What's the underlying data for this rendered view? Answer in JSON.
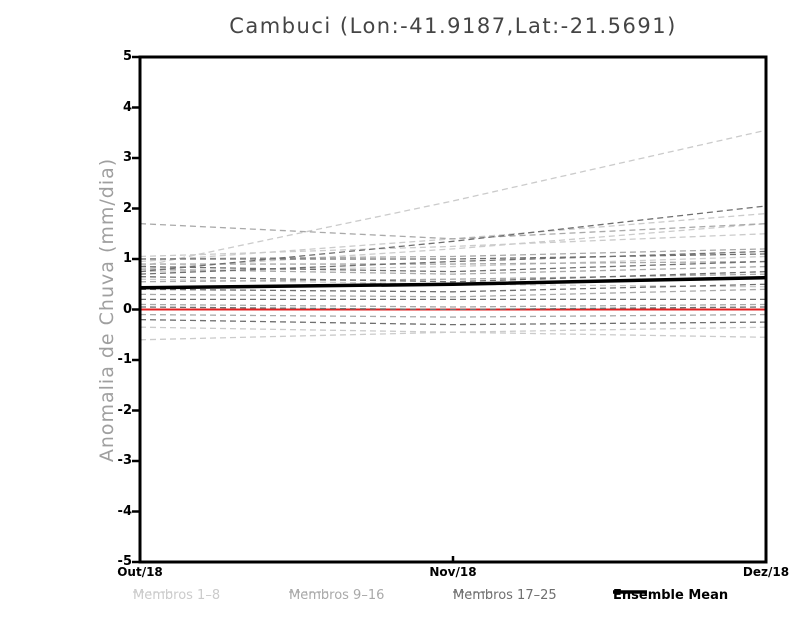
{
  "chart": {
    "title": "Cambuci (Lon:-41.9187,Lat:-21.5691)",
    "ylabel": "Anomalia de Chuva (mm/dia)",
    "x_tick_labels": [
      "Out/18",
      "Nov/18",
      "Dez/18"
    ],
    "y_tick_labels": [
      "5",
      "4",
      "3",
      "2",
      "1",
      "0",
      "-1",
      "-2",
      "-3",
      "-4",
      "-5"
    ]
  },
  "legend": {
    "items": [
      {
        "label": "Membros 1–8",
        "color": "#cbcbcb",
        "line": "dashed"
      },
      {
        "label": "Membros 9–16",
        "color": "#a9a9a9",
        "line": "dashed"
      },
      {
        "label": "Membros 17–25",
        "color": "#6f6f6f",
        "line": "dashed"
      },
      {
        "label": "Ensemble Mean",
        "color": "#000000",
        "line": "solid"
      }
    ]
  },
  "colors": {
    "frame": "#000000",
    "members_1_8": "#cbcbcb",
    "members_9_16": "#a9a9a9",
    "members_17_25": "#6f6f6f",
    "ensemble_mean": "#000000",
    "zero_line": "#e02021",
    "title_text": "#454545",
    "ylabel_text": "#9f9f9f"
  },
  "chart_data": {
    "type": "line",
    "title": "Cambuci (Lon:-41.9187,Lat:-21.5691)",
    "ylabel": "Anomalia de Chuva (mm/dia)",
    "x": [
      "Out/18",
      "Nov/18",
      "Dez/18"
    ],
    "ylim": [
      -5,
      5
    ],
    "y_tick_step": 1,
    "grid": false,
    "legend_position": "bottom",
    "groups": [
      {
        "name": "Membros 1-8",
        "color": "#cbcbcb",
        "style": "dashed",
        "members": [
          [
            0.85,
            2.15,
            3.55
          ],
          [
            0.95,
            1.4,
            1.9
          ],
          [
            0.8,
            1.2,
            1.7
          ],
          [
            1.05,
            1.25,
            1.5
          ],
          [
            0.75,
            0.85,
            1.05
          ],
          [
            0.6,
            0.5,
            0.45
          ],
          [
            -0.35,
            -0.45,
            -0.55
          ],
          [
            -0.6,
            -0.45,
            -0.35
          ]
        ]
      },
      {
        "name": "Membros 9-16",
        "color": "#a9a9a9",
        "style": "dashed",
        "members": [
          [
            1.7,
            1.4,
            1.7
          ],
          [
            1.0,
            1.05,
            1.2
          ],
          [
            0.9,
            0.9,
            0.95
          ],
          [
            0.8,
            0.7,
            0.85
          ],
          [
            0.55,
            0.6,
            0.7
          ],
          [
            0.3,
            0.25,
            0.4
          ],
          [
            0.1,
            0.05,
            0.1
          ],
          [
            -0.1,
            -0.15,
            -0.1
          ]
        ]
      },
      {
        "name": "Membros 17-25",
        "color": "#6f6f6f",
        "style": "dashed",
        "members": [
          [
            0.75,
            1.35,
            2.05
          ],
          [
            0.7,
            0.95,
            1.15
          ],
          [
            1.0,
            1.0,
            1.1
          ],
          [
            0.85,
            0.75,
            0.95
          ],
          [
            0.65,
            0.55,
            0.75
          ],
          [
            0.4,
            0.35,
            0.5
          ],
          [
            0.2,
            0.2,
            0.2
          ],
          [
            0.05,
            0.0,
            0.05
          ],
          [
            -0.2,
            -0.3,
            -0.25
          ]
        ]
      }
    ],
    "ensemble_mean": {
      "name": "Ensemble Mean",
      "color": "#000000",
      "style": "solid",
      "values": [
        0.43,
        0.5,
        0.63
      ]
    },
    "zero_line": {
      "name": "Zero reference",
      "color": "#e02021",
      "style": "solid",
      "values": [
        0,
        0,
        0
      ]
    }
  }
}
